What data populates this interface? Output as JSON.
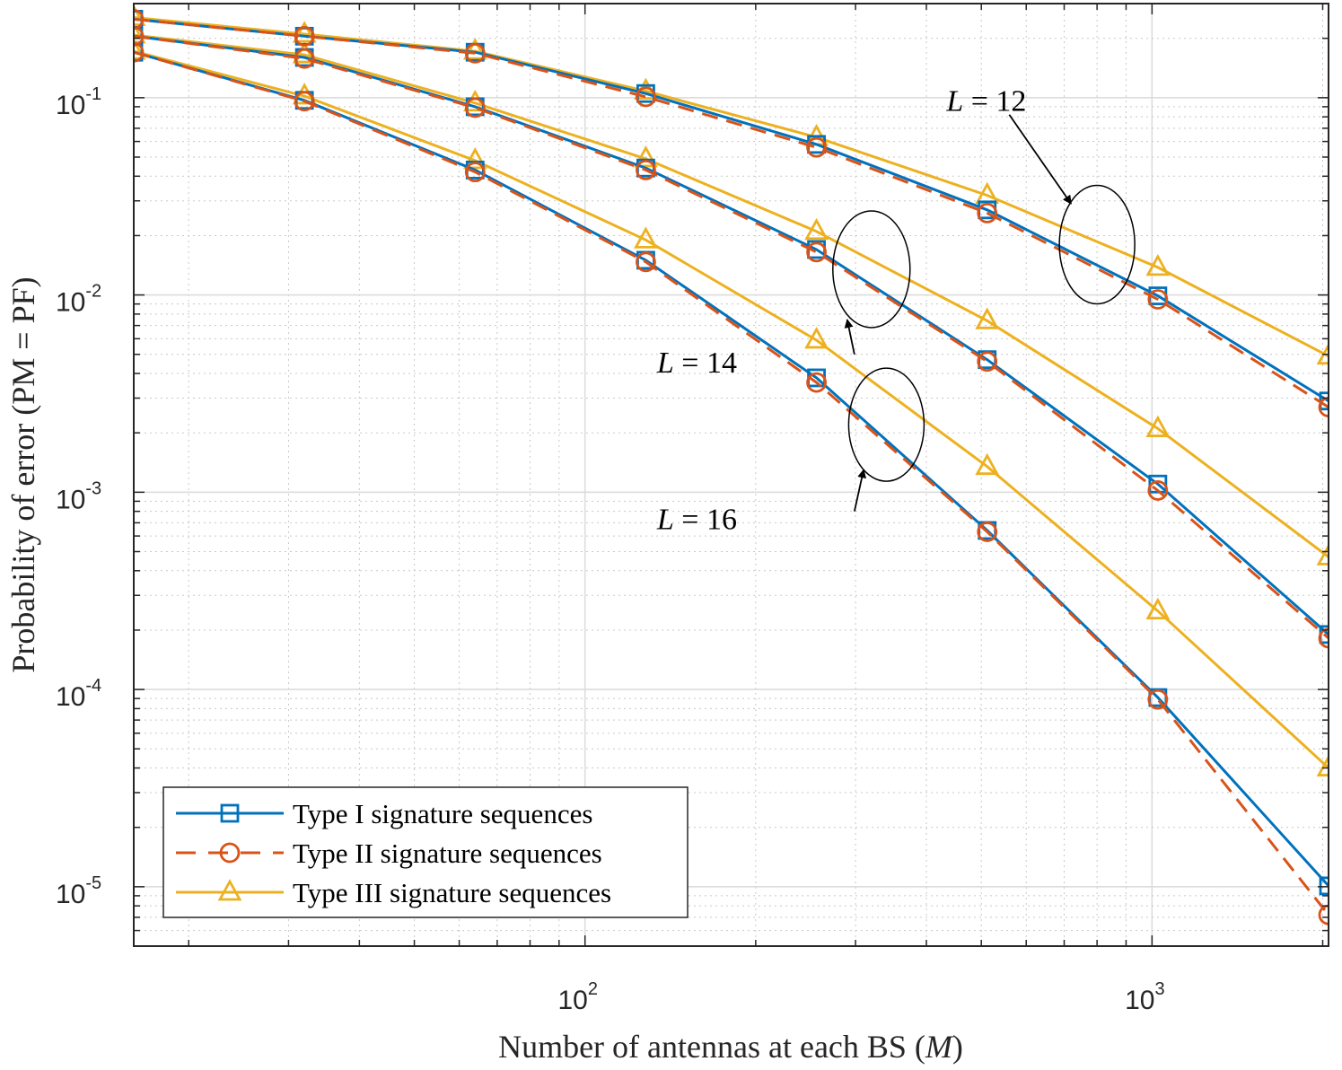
{
  "chart_data": {
    "type": "line",
    "title": "",
    "xlabel_prefix": "Number of antennas at each BS (",
    "xlabel_var": "M",
    "xlabel_suffix": ")",
    "ylabel": "Probability of error (PM = PF)",
    "xscale": "log",
    "yscale": "log",
    "xlim": [
      16,
      2048
    ],
    "ylim": [
      5e-06,
      0.3
    ],
    "xticks": [
      {
        "base": "10",
        "exp": "2",
        "value": 100
      },
      {
        "base": "10",
        "exp": "3",
        "value": 1000
      }
    ],
    "yticks": [
      {
        "base": "10",
        "exp": "-1",
        "value": 0.1
      },
      {
        "base": "10",
        "exp": "-2",
        "value": 0.01
      },
      {
        "base": "10",
        "exp": "-3",
        "value": 0.001
      },
      {
        "base": "10",
        "exp": "-4",
        "value": 0.0001
      },
      {
        "base": "10",
        "exp": "-5",
        "value": 1e-05
      }
    ],
    "grid": true,
    "minor_grid": true,
    "legend_position": "bottom-left",
    "x": [
      16,
      32,
      64,
      128,
      256,
      512,
      1024,
      2048
    ],
    "series": [
      {
        "name": "Type I signature sequences",
        "group": "L = 12",
        "color": "#0072BD",
        "marker": "square",
        "dash": "solid",
        "values": [
          0.25,
          0.205,
          0.17,
          0.105,
          0.058,
          0.027,
          0.0099,
          0.0029
        ]
      },
      {
        "name": "Type II signature sequences",
        "group": "L = 12",
        "color": "#D95319",
        "marker": "circle",
        "dash": "dashed",
        "values": [
          0.25,
          0.205,
          0.168,
          0.101,
          0.056,
          0.026,
          0.0095,
          0.0027
        ]
      },
      {
        "name": "Type III signature sequences",
        "group": "L = 12",
        "color": "#EDB120",
        "marker": "triangle",
        "dash": "solid",
        "values": [
          0.255,
          0.21,
          0.172,
          0.108,
          0.063,
          0.032,
          0.0138,
          0.0049
        ]
      },
      {
        "name": "Type I signature sequences",
        "group": "L = 14",
        "color": "#0072BD",
        "marker": "square",
        "dash": "solid",
        "values": [
          0.205,
          0.16,
          0.09,
          0.044,
          0.017,
          0.0047,
          0.0011,
          0.00019
        ]
      },
      {
        "name": "Type II signature sequences",
        "group": "L = 14",
        "color": "#D95319",
        "marker": "circle",
        "dash": "dashed",
        "values": [
          0.205,
          0.158,
          0.089,
          0.043,
          0.0165,
          0.0046,
          0.00102,
          0.000182
        ]
      },
      {
        "name": "Type III signature sequences",
        "group": "L = 14",
        "color": "#EDB120",
        "marker": "triangle",
        "dash": "solid",
        "values": [
          0.208,
          0.165,
          0.094,
          0.049,
          0.021,
          0.0074,
          0.0021,
          0.00047
        ]
      },
      {
        "name": "Type I signature sequences",
        "group": "L = 16",
        "color": "#0072BD",
        "marker": "square",
        "dash": "solid",
        "values": [
          0.17,
          0.097,
          0.043,
          0.015,
          0.0038,
          0.00064,
          9.1e-05,
          1.01e-05
        ]
      },
      {
        "name": "Type II signature sequences",
        "group": "L = 16",
        "color": "#D95319",
        "marker": "circle",
        "dash": "dashed",
        "values": [
          0.17,
          0.096,
          0.042,
          0.0147,
          0.0036,
          0.00063,
          8.9e-05,
          7.2e-06
        ]
      },
      {
        "name": "Type III signature sequences",
        "group": "L = 16",
        "color": "#EDB120",
        "marker": "triangle",
        "dash": "solid",
        "values": [
          0.172,
          0.102,
          0.048,
          0.019,
          0.0059,
          0.00135,
          0.00025,
          4e-05
        ]
      }
    ],
    "legend": [
      {
        "label": "Type I signature sequences",
        "color": "#0072BD",
        "marker": "square",
        "dash": "solid"
      },
      {
        "label": "Type II signature sequences",
        "color": "#D95319",
        "marker": "circle",
        "dash": "dashed"
      },
      {
        "label": "Type III signature sequences",
        "color": "#EDB120",
        "marker": "triangle",
        "dash": "solid"
      }
    ],
    "annotations": [
      {
        "var": "L",
        "rest": " = 12",
        "ellipse_center": {
          "x": 800,
          "y": 0.018
        },
        "label_at": {
          "x": 540,
          "y": 0.095
        },
        "arrow_tip": {
          "x": 720,
          "y": 0.029
        }
      },
      {
        "var": "L",
        "rest": " = 14",
        "ellipse_center": {
          "x": 320,
          "y": 0.0135
        },
        "label_at": {
          "x": 200,
          "y": 0.0045
        },
        "arrow_tip": {
          "x": 290,
          "y": 0.0075
        }
      },
      {
        "var": "L",
        "rest": " = 16",
        "ellipse_center": {
          "x": 340,
          "y": 0.0022
        },
        "label_at": {
          "x": 200,
          "y": 0.00072
        },
        "arrow_tip": {
          "x": 310,
          "y": 0.0013
        }
      }
    ]
  }
}
